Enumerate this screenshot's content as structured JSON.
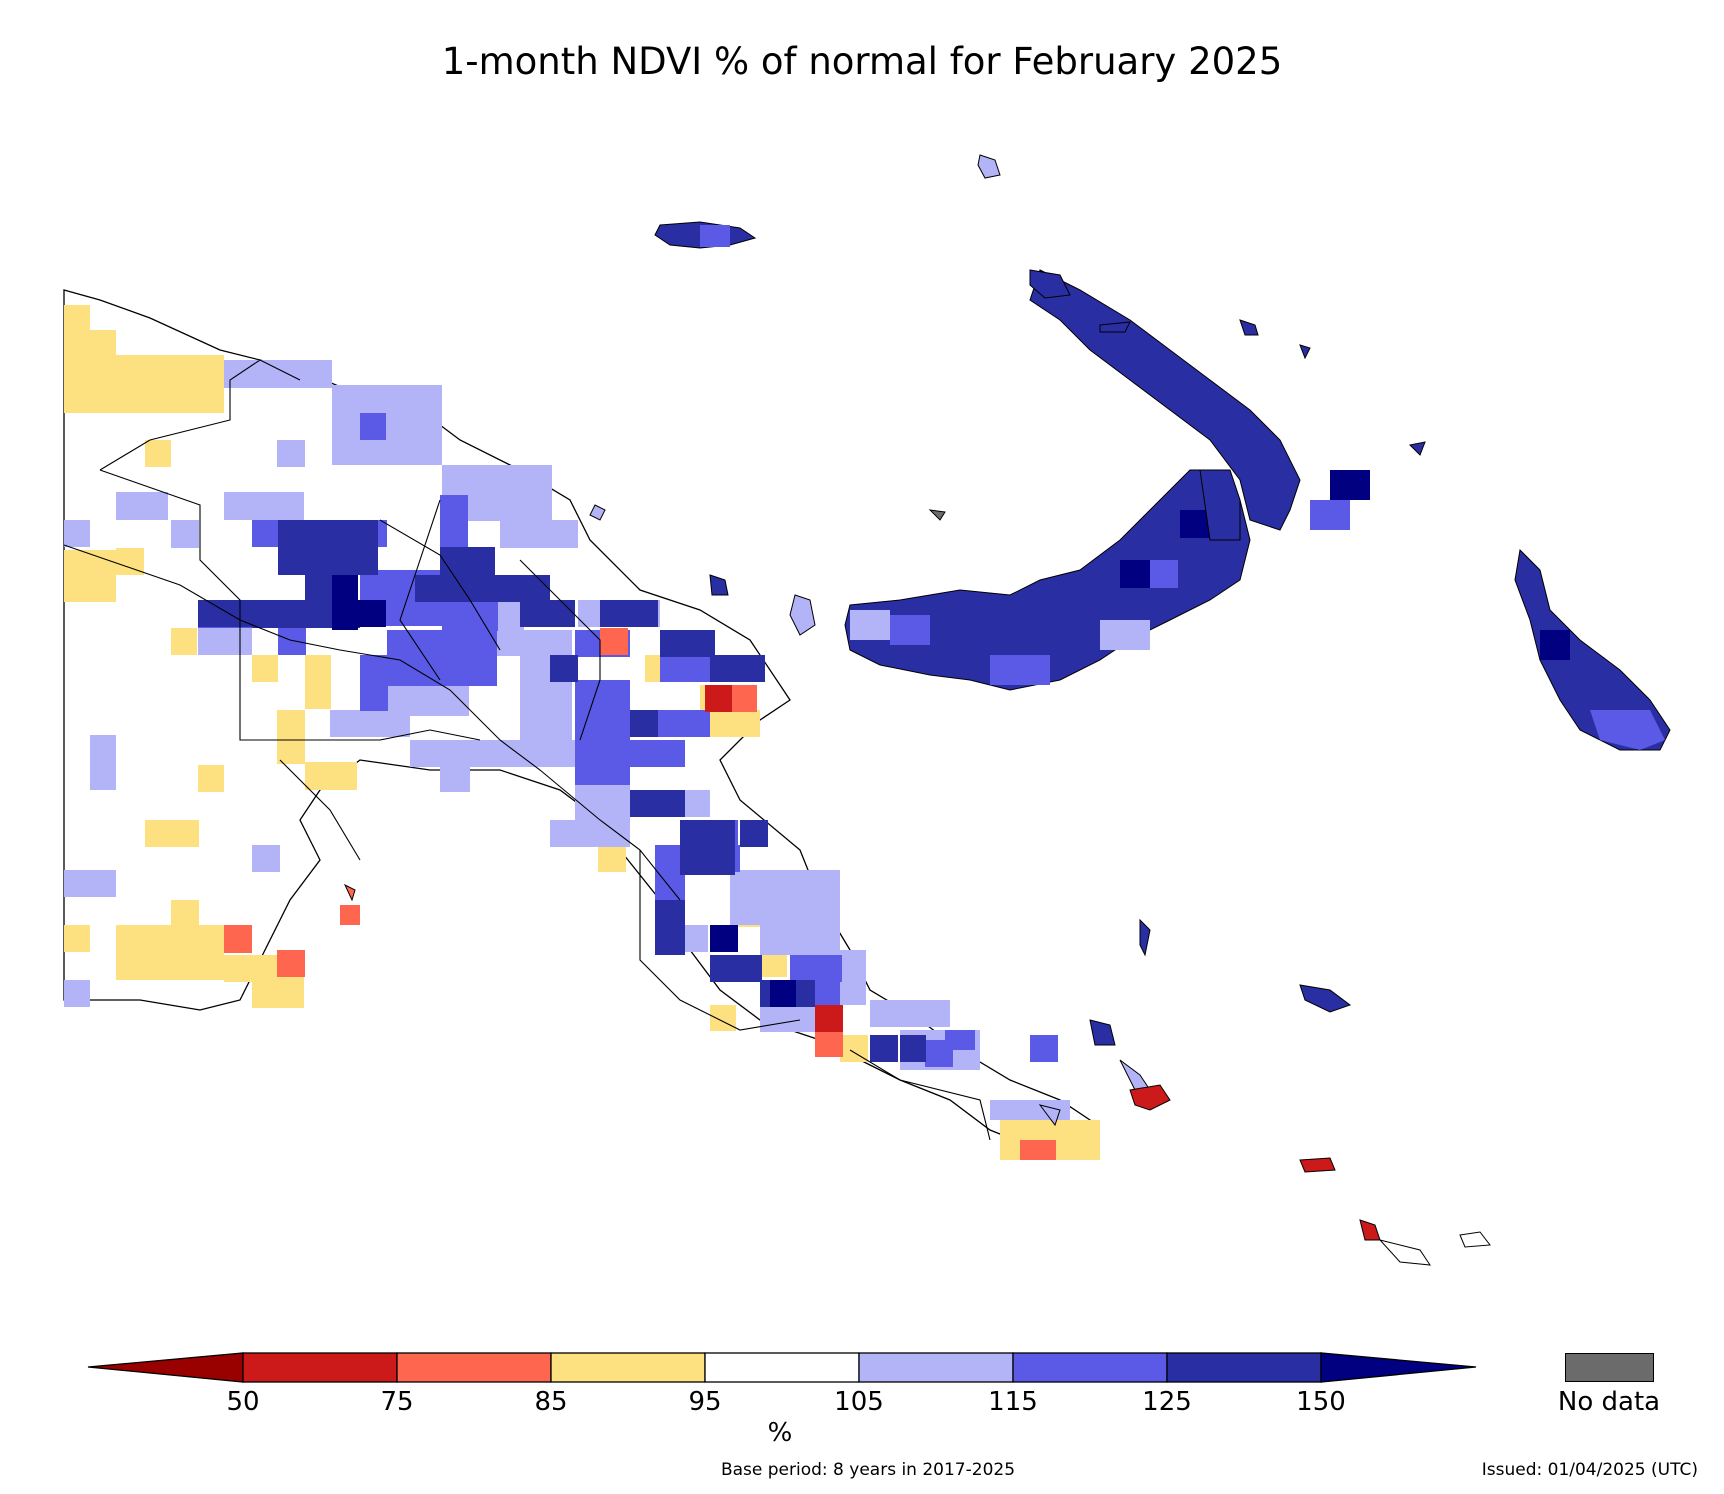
{
  "title": "1-month NDVI % of normal for February 2025",
  "colorbar": {
    "ticks": [
      "50",
      "75",
      "85",
      "95",
      "105",
      "115",
      "125",
      "150"
    ],
    "unit": "%",
    "bins": [
      {
        "range": "<50",
        "color": "#990000"
      },
      {
        "range": "50-75",
        "color": "#cc1a1a"
      },
      {
        "range": "75-85",
        "color": "#ff6650"
      },
      {
        "range": "85-95",
        "color": "#fde07f"
      },
      {
        "range": "95-105",
        "color": "#ffffff"
      },
      {
        "range": "105-115",
        "color": "#b3b3f7"
      },
      {
        "range": "115-125",
        "color": "#5a5ae6"
      },
      {
        "range": "125-150",
        "color": "#2a2ea3"
      },
      {
        "range": ">150",
        "color": "#000080"
      }
    ],
    "nodata_label": "No data",
    "nodata_color": "#6b6b6b"
  },
  "footer": {
    "base_period": "Base period: 8 years in 2017-2025",
    "issued": "Issued: 01/04/2025 (UTC)"
  }
}
